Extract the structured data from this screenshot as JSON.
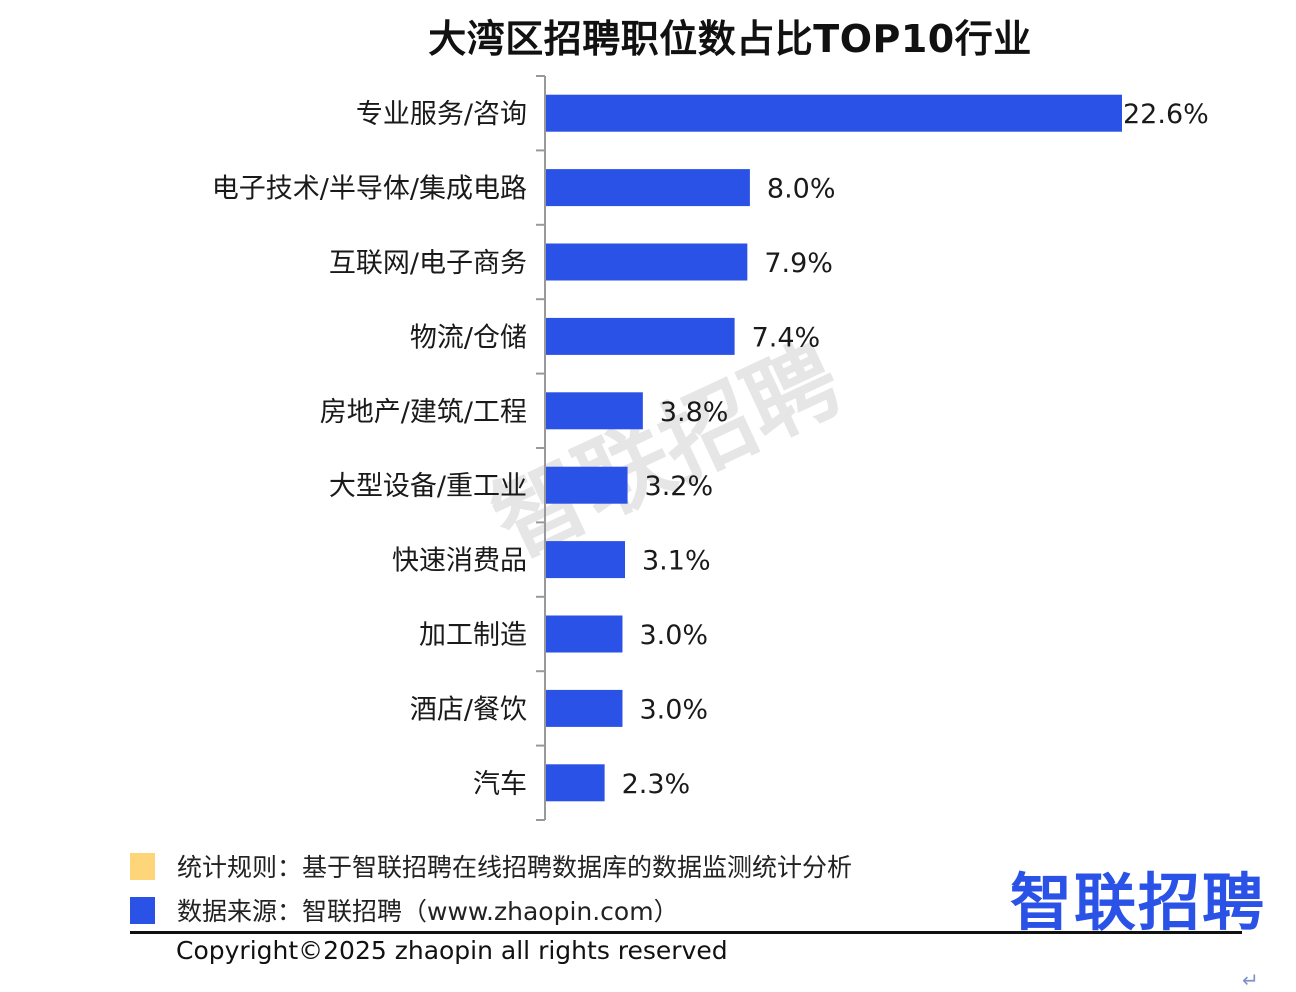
{
  "chart_data": {
    "type": "bar",
    "orientation": "horizontal",
    "title": "大湾区招聘职位数占比TOP10行业",
    "categories": [
      "专业服务/咨询",
      "电子技术/半导体/集成电路",
      "互联网/电子商务",
      "物流/仓储",
      "房地产/建筑/工程",
      "大型设备/重工业",
      "快速消费品",
      "加工制造",
      "酒店/餐饮",
      "汽车"
    ],
    "values": [
      22.6,
      8.0,
      7.9,
      7.4,
      3.8,
      3.2,
      3.1,
      3.0,
      3.0,
      2.3
    ],
    "value_labels": [
      "22.6%",
      "8.0%",
      "7.9%",
      "7.4%",
      "3.8%",
      "3.2%",
      "3.1%",
      "3.0%",
      "3.0%",
      "2.3%"
    ],
    "xlim": [
      0,
      25
    ],
    "grid": false,
    "bar_color": "#2a52e6",
    "watermark": "智联招聘"
  },
  "legend": {
    "rule_color": "#ffd57a",
    "source_color": "#2a52e6",
    "rule_text": "统计规则：基于智联招聘在线招聘数据库的数据监测统计分析",
    "source_text": "数据来源：智联招聘（www.zhaopin.com）"
  },
  "logo": "智联招聘",
  "copyright": "Copyright©2025 zhaopin all rights reserved",
  "return_glyph": "↵"
}
